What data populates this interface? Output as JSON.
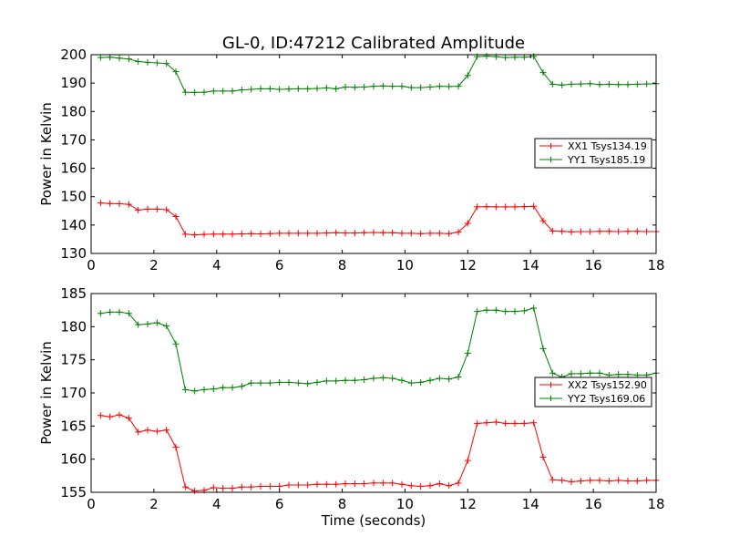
{
  "title": "GL-0, ID:47212 Calibrated Amplitude",
  "chart_data": [
    {
      "type": "line",
      "title": "GL-0, ID:47212 Calibrated Amplitude",
      "xlabel": "",
      "ylabel": "Power in Kelvin",
      "xlim": [
        0,
        18
      ],
      "ylim": [
        130,
        200
      ],
      "xticks": [
        "0",
        "2",
        "4",
        "6",
        "8",
        "10",
        "12",
        "14",
        "16",
        "18"
      ],
      "yticks": [
        "130",
        "140",
        "150",
        "160",
        "170",
        "180",
        "190",
        "200"
      ],
      "legend_position": "center-right",
      "x": [
        0.3,
        0.6,
        0.9,
        1.2,
        1.5,
        1.8,
        2.1,
        2.4,
        2.7,
        3.0,
        3.3,
        3.6,
        3.9,
        4.2,
        4.5,
        4.8,
        5.1,
        5.4,
        5.7,
        6.0,
        6.3,
        6.6,
        6.9,
        7.2,
        7.5,
        7.8,
        8.1,
        8.4,
        8.7,
        9.0,
        9.3,
        9.6,
        9.9,
        10.2,
        10.5,
        10.8,
        11.1,
        11.4,
        11.7,
        12.0,
        12.3,
        12.6,
        12.9,
        13.2,
        13.5,
        13.8,
        14.1,
        14.4,
        14.7,
        15.0,
        15.3,
        15.6,
        15.9,
        16.2,
        16.5,
        16.8,
        17.1,
        17.4,
        17.7,
        18.0
      ],
      "series": [
        {
          "name": "XX1 Tsys134.19",
          "color": "#ff0000",
          "values": [
            147.8,
            147.6,
            147.5,
            147.3,
            145.3,
            145.6,
            145.6,
            145.4,
            143.0,
            136.8,
            136.5,
            136.7,
            136.8,
            136.8,
            136.8,
            136.9,
            137.0,
            136.9,
            137.0,
            137.1,
            137.1,
            137.1,
            137.1,
            137.1,
            137.2,
            137.3,
            137.2,
            137.2,
            137.3,
            137.4,
            137.3,
            137.3,
            137.1,
            137.1,
            137.0,
            137.1,
            137.1,
            137.0,
            137.5,
            140.6,
            146.4,
            146.5,
            146.4,
            146.4,
            146.4,
            146.5,
            146.6,
            141.5,
            137.9,
            137.8,
            137.6,
            137.7,
            137.7,
            137.8,
            137.8,
            137.7,
            137.8,
            137.8,
            137.7,
            137.7
          ]
        },
        {
          "name": "YY1 Tsys185.19",
          "color": "#008000",
          "values": [
            199.0,
            199.1,
            198.8,
            198.5,
            197.6,
            197.3,
            197.1,
            196.9,
            194.0,
            186.8,
            186.7,
            186.8,
            187.2,
            187.2,
            187.2,
            187.6,
            187.8,
            188.0,
            188.0,
            187.8,
            187.9,
            188.0,
            188.0,
            188.1,
            188.3,
            188.0,
            188.6,
            188.5,
            188.6,
            188.9,
            189.0,
            188.9,
            188.9,
            188.4,
            188.4,
            188.6,
            188.9,
            188.8,
            188.9,
            192.7,
            199.3,
            199.5,
            199.3,
            199.0,
            199.1,
            199.1,
            199.4,
            193.7,
            189.6,
            189.3,
            189.6,
            189.7,
            189.8,
            189.5,
            189.6,
            189.5,
            189.5,
            189.6,
            189.7,
            189.8
          ]
        }
      ]
    },
    {
      "type": "line",
      "title": "",
      "xlabel": "Time (seconds)",
      "ylabel": "Power in Kelvin",
      "xlim": [
        0,
        18
      ],
      "ylim": [
        155,
        185
      ],
      "xticks": [
        "0",
        "2",
        "4",
        "6",
        "8",
        "10",
        "12",
        "14",
        "16",
        "18"
      ],
      "yticks": [
        "155",
        "160",
        "165",
        "170",
        "175",
        "180",
        "185"
      ],
      "legend_position": "center-right",
      "x": [
        0.3,
        0.6,
        0.9,
        1.2,
        1.5,
        1.8,
        2.1,
        2.4,
        2.7,
        3.0,
        3.3,
        3.6,
        3.9,
        4.2,
        4.5,
        4.8,
        5.1,
        5.4,
        5.7,
        6.0,
        6.3,
        6.6,
        6.9,
        7.2,
        7.5,
        7.8,
        8.1,
        8.4,
        8.7,
        9.0,
        9.3,
        9.6,
        9.9,
        10.2,
        10.5,
        10.8,
        11.1,
        11.4,
        11.7,
        12.0,
        12.3,
        12.6,
        12.9,
        13.2,
        13.5,
        13.8,
        14.1,
        14.4,
        14.7,
        15.0,
        15.3,
        15.6,
        15.9,
        16.2,
        16.5,
        16.8,
        17.1,
        17.4,
        17.7,
        18.0
      ],
      "series": [
        {
          "name": "XX2 Tsys152.90",
          "color": "#ff0000",
          "values": [
            166.6,
            166.4,
            166.7,
            166.2,
            164.1,
            164.4,
            164.2,
            164.4,
            161.8,
            155.8,
            155.2,
            155.3,
            155.7,
            155.6,
            155.6,
            155.8,
            155.8,
            155.9,
            155.9,
            155.9,
            156.1,
            156.1,
            156.1,
            156.2,
            156.2,
            156.2,
            156.3,
            156.3,
            156.3,
            156.4,
            156.4,
            156.4,
            156.2,
            156.0,
            155.9,
            156.0,
            156.3,
            156.0,
            156.4,
            159.8,
            165.4,
            165.5,
            165.6,
            165.4,
            165.4,
            165.4,
            165.5,
            160.3,
            156.9,
            156.8,
            156.6,
            156.7,
            156.8,
            156.8,
            156.7,
            156.8,
            156.7,
            156.7,
            156.8,
            156.8
          ]
        },
        {
          "name": "YY2 Tsys169.06",
          "color": "#008000",
          "values": [
            182.0,
            182.2,
            182.2,
            182.0,
            180.3,
            180.4,
            180.6,
            180.1,
            177.4,
            170.5,
            170.3,
            170.5,
            170.6,
            170.8,
            170.8,
            171.0,
            171.5,
            171.5,
            171.5,
            171.6,
            171.6,
            171.5,
            171.4,
            171.6,
            171.8,
            171.8,
            171.9,
            171.9,
            172.0,
            172.2,
            172.3,
            172.2,
            171.9,
            171.5,
            171.6,
            171.9,
            172.2,
            172.1,
            172.4,
            176.0,
            182.3,
            182.5,
            182.5,
            182.3,
            182.3,
            182.4,
            182.8,
            176.7,
            173.0,
            172.4,
            172.9,
            172.9,
            173.0,
            173.0,
            172.7,
            172.8,
            172.8,
            172.7,
            172.7,
            173.0
          ]
        }
      ]
    }
  ]
}
